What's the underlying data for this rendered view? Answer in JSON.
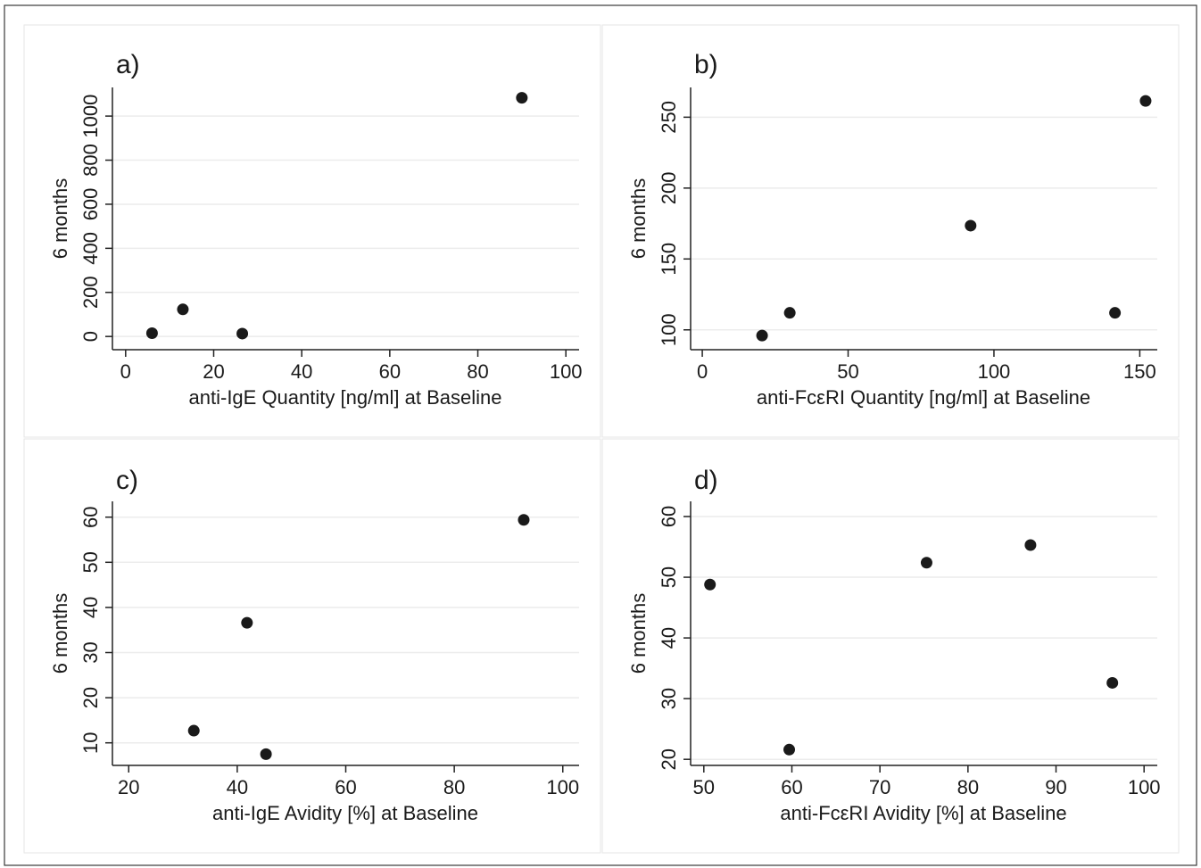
{
  "chart_data": [
    {
      "type": "scatter",
      "panel_label": "a)",
      "xlabel": "anti-IgE Quantity [ng/ml] at Baseline",
      "ylabel": "6 months",
      "xlim": [
        -3,
        103
      ],
      "ylim": [
        -60,
        1130
      ],
      "xticks": [
        0,
        20,
        40,
        60,
        80,
        100
      ],
      "yticks": [
        0,
        200,
        400,
        600,
        800,
        1000
      ],
      "grid": true,
      "x": [
        6,
        13,
        26.5,
        90
      ],
      "y": [
        15,
        123,
        13,
        1083
      ]
    },
    {
      "type": "scatter",
      "panel_label": "b)",
      "xlabel": "anti-FcεRI Quantity [ng/ml] at Baseline",
      "ylabel": "6 months",
      "xlim": [
        -4,
        156
      ],
      "ylim": [
        86,
        271
      ],
      "xticks": [
        0,
        50,
        100,
        150
      ],
      "yticks": [
        100,
        150,
        200,
        250
      ],
      "grid": true,
      "x": [
        20.5,
        30,
        92,
        141.5,
        152
      ],
      "y": [
        96,
        112,
        173.5,
        112,
        261.5
      ]
    },
    {
      "type": "scatter",
      "panel_label": "c)",
      "xlabel": "anti-IgE Avidity [%] at Baseline",
      "ylabel": "6 months",
      "xlim": [
        17,
        103
      ],
      "ylim": [
        5,
        63.5
      ],
      "xticks": [
        20,
        40,
        60,
        80,
        100
      ],
      "yticks": [
        10,
        20,
        30,
        40,
        50,
        60
      ],
      "grid": true,
      "x": [
        32,
        41.8,
        45.3,
        92.8
      ],
      "y": [
        12.7,
        36.6,
        7.5,
        59.4
      ]
    },
    {
      "type": "scatter",
      "panel_label": "d)",
      "xlabel": "anti-FcεRI Avidity [%] at Baseline",
      "ylabel": "6 months",
      "xlim": [
        48.5,
        101.5
      ],
      "ylim": [
        19,
        62.5
      ],
      "xticks": [
        50,
        60,
        70,
        80,
        90,
        100
      ],
      "yticks": [
        20,
        30,
        40,
        50,
        60
      ],
      "grid": true,
      "x": [
        50.7,
        59.7,
        75.3,
        87.1,
        96.4
      ],
      "y": [
        48.8,
        21.6,
        52.4,
        55.3,
        32.6
      ]
    }
  ]
}
